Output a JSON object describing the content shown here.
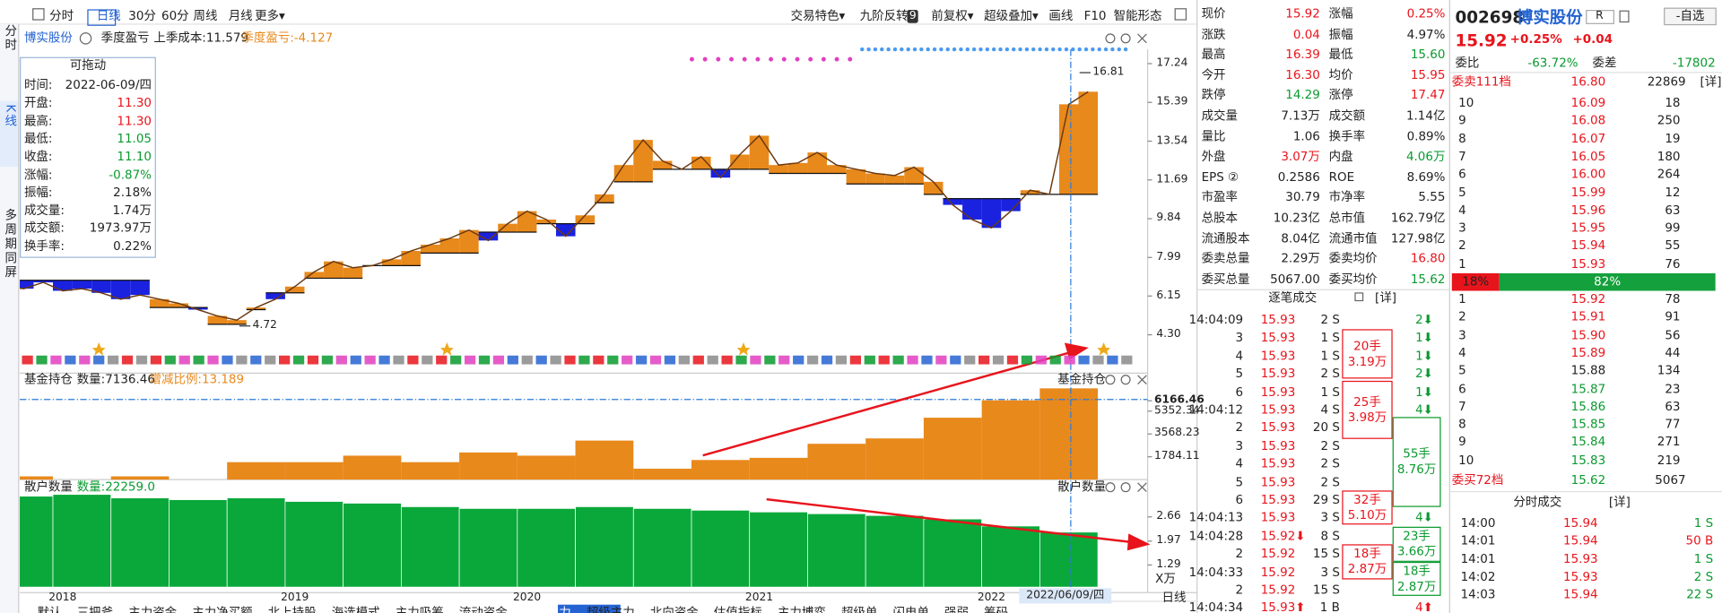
{
  "toolbar": {
    "left": [
      "分时",
      "日线",
      "30分",
      "60分",
      "周线",
      "月线",
      "更多▾"
    ],
    "right": [
      "交易特色▾",
      "九阶反转",
      "前复权▾",
      "超级叠加▾",
      "画线",
      "F10",
      "智能形态"
    ],
    "badge": "9"
  },
  "side_tabs": [
    "分时",
    "K线",
    "多周期同屏"
  ],
  "chart_header": {
    "stock": "博实股份",
    "indicator": "季度盈亏",
    "cost": "上季成本:11.579",
    "profit": "季度盈亏:-4.127"
  },
  "info_box": {
    "title": "可拖动",
    "rows": [
      [
        "时间:",
        "2022-06-09/四"
      ],
      [
        "开盘:",
        "11.30"
      ],
      [
        "最高:",
        "11.30"
      ],
      [
        "最低:",
        "11.05"
      ],
      [
        "收盘:",
        "11.10"
      ],
      [
        "涨幅:",
        "-0.87%"
      ],
      [
        "振幅:",
        "2.18%"
      ],
      [
        "成交量:",
        "1.74万"
      ],
      [
        "成交额:",
        "1973.97万"
      ],
      [
        "换手率:",
        "0.22%"
      ]
    ]
  },
  "chart_data": [
    {
      "type": "band",
      "categories": [
        null,
        null,
        null,
        "2018",
        null,
        null,
        null,
        null,
        null,
        null,
        null,
        null,
        null,
        null,
        null,
        "2019",
        null,
        null,
        null,
        null,
        null,
        null,
        null,
        null,
        null,
        null,
        null,
        "2020",
        null,
        null,
        null,
        null,
        null,
        null,
        null,
        null,
        null,
        null,
        null,
        "2021",
        null,
        null,
        null,
        null,
        null,
        null,
        null,
        null,
        null,
        null,
        null,
        "2022",
        null,
        null,
        null,
        null,
        null
      ],
      "values": [
        6.6,
        6.5,
        6.8,
        6.4,
        6.5,
        6.3,
        6.0,
        6.2,
        6.0,
        5.8,
        5.5,
        5.2,
        5.0,
        5.6,
        6.0,
        6.6,
        7.3,
        7.8,
        7.5,
        7.6,
        7.9,
        8.3,
        8.6,
        8.9,
        9.3,
        8.8,
        9.6,
        10.2,
        9.8,
        9.0,
        10.0,
        11.0,
        12.4,
        13.6,
        12.6,
        12.2,
        12.8,
        11.8,
        12.9,
        13.8,
        12.4,
        12.5,
        13.0,
        12.4,
        12.2,
        12.0,
        11.9,
        12.3,
        11.6,
        10.5,
        9.8,
        9.4,
        10.2,
        11.2,
        11.0,
        15.3,
        15.9
      ],
      "cost_values": [
        6.9,
        6.9,
        6.9,
        6.9,
        6.9,
        6.9,
        6.9,
        6.9,
        5.6,
        5.6,
        5.6,
        4.8,
        4.8,
        5.5,
        6.3,
        6.3,
        7.0,
        7.0,
        7.0,
        7.6,
        7.6,
        7.6,
        8.2,
        8.2,
        8.2,
        9.2,
        9.2,
        9.2,
        9.6,
        9.6,
        9.6,
        10.6,
        11.6,
        11.6,
        12.2,
        12.2,
        12.2,
        12.2,
        12.2,
        12.2,
        12.0,
        12.0,
        12.0,
        12.0,
        11.5,
        11.5,
        11.5,
        11.5,
        11.0,
        10.8,
        10.8,
        10.8,
        10.8,
        11.0,
        11.0,
        11.0,
        11.0
      ],
      "ylim": [
        3.78,
        17.92
      ],
      "yticks": [
        17.24,
        15.39,
        13.54,
        11.69,
        9.84,
        7.99,
        6.15,
        {
          "value": 4.3,
          "label": "4.30"
        }
      ],
      "annotations": [
        16.81,
        4.72
      ],
      "colors": {
        "up": "#e8891c",
        "down": "#1a22e0",
        "line": "#6b3a10"
      },
      "crosshair_label": "2022/06/09/四"
    },
    {
      "type": "bar",
      "title": "基金持仓",
      "side_title": "基金持仓",
      "quantity": "数量:7136.46",
      "change": "增减比例:13.189",
      "values": [
        250,
        0,
        250,
        0,
        1360,
        1360,
        1870,
        1360,
        2120,
        1870,
        3050,
        850,
        1530,
        1700,
        2800,
        3220,
        4840,
        6200,
        7136.46
      ],
      "color": "#e8891c",
      "ylim": [
        0,
        7300
      ],
      "yticks": [
        1784.11,
        3568.23,
        5352.34,
        6166.46
      ]
    },
    {
      "type": "bar",
      "title": "散户数量",
      "side_title": "散户数量",
      "quantity": "数量:22259.0",
      "values": [
        3.25,
        3.3,
        3.2,
        3.15,
        3.2,
        3.1,
        3.05,
        2.95,
        2.9,
        2.9,
        2.95,
        2.9,
        2.85,
        2.8,
        2.75,
        2.7,
        2.6,
        2.4,
        2.2259
      ],
      "color": "#0aa83a",
      "ylim": [
        0.66,
        3.63
      ],
      "yticks": [
        1.29,
        1.97,
        2.66
      ],
      "unit": "X万"
    }
  ],
  "footer": {
    "period": "日线",
    "tabs": [
      "默认",
      "三把斧",
      "主力资金",
      "主力净买额",
      "北上持股",
      "海选模式",
      "主力吸筹",
      "流动资金",
      "市值主力",
      "超级主力",
      "北向资金",
      "估值指标",
      "主力博弈",
      "超级单",
      "闪电单",
      "强弱",
      "筹码"
    ]
  },
  "quote": {
    "rows": [
      [
        "现价",
        "15.92",
        "涨幅",
        "0.25%"
      ],
      [
        "涨跌",
        "0.04",
        "振幅",
        "4.97%"
      ],
      [
        "最高",
        "16.39",
        "最低",
        "15.60"
      ],
      [
        "今开",
        "16.30",
        "均价",
        "15.95"
      ],
      [
        "跌停",
        "14.29",
        "涨停",
        "17.47"
      ],
      [
        "成交量",
        "7.13万",
        "成交额",
        "1.14亿"
      ],
      [
        "量比",
        "1.06",
        "换手率",
        "0.89%"
      ],
      [
        "外盘",
        "3.07万",
        "内盘",
        "4.06万"
      ],
      [
        "EPS ②",
        "0.2586",
        "ROE",
        "8.69%"
      ],
      [
        "市盈率",
        "30.79",
        "市净率",
        "5.55"
      ],
      [
        "总股本",
        "10.23亿",
        "总市值",
        "162.79亿"
      ],
      [
        "流通股本",
        "8.04亿",
        "流通市值",
        "127.98亿"
      ],
      [
        "委卖总量",
        "2.29万",
        "委卖均价",
        "16.80"
      ],
      [
        "委买总量",
        "5067.00",
        "委买均价",
        "15.62"
      ]
    ]
  },
  "ticks": {
    "title": "逐笔成交",
    "detail": "[详]",
    "rows": [
      [
        "14:04:09",
        "15.93",
        "2 S",
        "2⬇"
      ],
      [
        "3",
        "15.93",
        "1 S",
        "1⬇"
      ],
      [
        "4",
        "15.93",
        "1 S",
        "1⬇"
      ],
      [
        "5",
        "15.93",
        "2 S",
        "2⬇"
      ],
      [
        "6",
        "15.93",
        "1 S",
        "1⬇"
      ],
      [
        "14:04:12",
        "15.93",
        "4 S",
        "4⬇"
      ],
      [
        "2",
        "15.93",
        "20 S",
        ""
      ],
      [
        "3",
        "15.93",
        "2 S",
        "2⬇"
      ],
      [
        "4",
        "15.93",
        "2 S",
        "2⬇"
      ],
      [
        "5",
        "15.93",
        "2 S",
        "2⬇"
      ],
      [
        "6",
        "15.93",
        "29 S",
        ""
      ],
      [
        "14:04:13",
        "15.93",
        "3 S",
        "4⬇"
      ],
      [
        "14:04:28",
        "15.92⬇",
        "8 S",
        "8⬇"
      ],
      [
        "2",
        "15.92",
        "15 S",
        ""
      ],
      [
        "14:04:33",
        "15.92",
        "3 S",
        ""
      ],
      [
        "2",
        "15.92",
        "15 S",
        "15⬇"
      ],
      [
        "14:04:34",
        "15.93⬆",
        "1 B",
        "4⬆"
      ]
    ],
    "boxes": [
      [
        "20手",
        "3.19万"
      ],
      [
        "25手",
        "3.98万"
      ],
      [
        "55手",
        "8.76万"
      ],
      [
        "32手",
        "5.10万"
      ],
      [
        "23手",
        "3.66万"
      ],
      [
        "18手",
        "2.87万"
      ],
      [
        "18手",
        "2.87万"
      ]
    ]
  },
  "order_book": {
    "code": "002698",
    "name": "博实股份",
    "badge": "R",
    "watch": "-自选",
    "price": "15.92",
    "pct": "+0.25%",
    "chg": "+0.04",
    "ratio_label": "委比",
    "ratio": "-63.72%",
    "diff_label": "委差",
    "diff": "-17802",
    "detail": "[详]",
    "sell_total": [
      "委卖111档",
      "16.80",
      "22869"
    ],
    "sell": [
      [
        "10",
        "16.09",
        "18"
      ],
      [
        "9",
        "16.08",
        "250"
      ],
      [
        "8",
        "16.07",
        "19"
      ],
      [
        "7",
        "16.05",
        "180"
      ],
      [
        "6",
        "16.00",
        "264"
      ],
      [
        "5",
        "15.99",
        "12"
      ],
      [
        "4",
        "15.96",
        "63"
      ],
      [
        "3",
        "15.95",
        "99"
      ],
      [
        "2",
        "15.94",
        "55"
      ],
      [
        "1",
        "15.93",
        "76"
      ]
    ],
    "strength": {
      "values": [
        18,
        82
      ],
      "value_labels": [
        "18%",
        "82%"
      ],
      "colors": [
        "#e8141c",
        "#14a03c"
      ]
    },
    "buy": [
      [
        "1",
        "15.92",
        "78"
      ],
      [
        "2",
        "15.91",
        "91"
      ],
      [
        "3",
        "15.90",
        "56"
      ],
      [
        "4",
        "15.89",
        "44"
      ],
      [
        "5",
        "15.88",
        "134"
      ],
      [
        "6",
        "15.87",
        "23"
      ],
      [
        "7",
        "15.86",
        "63"
      ],
      [
        "8",
        "15.85",
        "77"
      ],
      [
        "9",
        "15.84",
        "271"
      ],
      [
        "10",
        "15.83",
        "219"
      ]
    ],
    "buy_total": [
      "委买72档",
      "15.62",
      "5067"
    ]
  },
  "minute_trades": {
    "title": "分时成交",
    "detail": "[详]",
    "rows": [
      [
        "14:00",
        "15.94",
        "1 S"
      ],
      [
        "14:01",
        "15.94",
        "50 B"
      ],
      [
        "14:01",
        "15.93",
        "1 S"
      ],
      [
        "14:02",
        "15.93",
        "2 S"
      ],
      [
        "14:03",
        "15.94",
        "22 S"
      ]
    ]
  }
}
